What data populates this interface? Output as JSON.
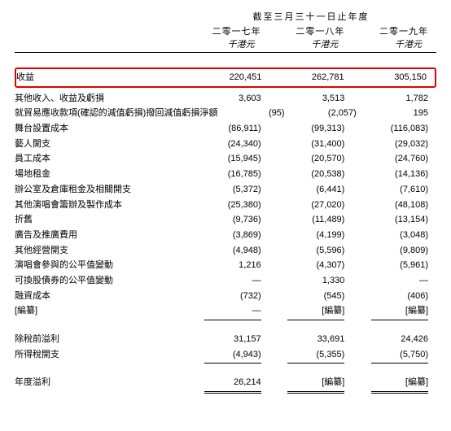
{
  "header": {
    "period_label": "截至三月三十一日止年度",
    "years": [
      "二零一七年",
      "二零一八年",
      "二零一九年"
    ],
    "unit": "千港元"
  },
  "highlight_row": {
    "label": "收益",
    "values": [
      "220,451",
      "262,781",
      "305,150"
    ]
  },
  "rows": [
    {
      "label": "其他收入、收益及虧損",
      "values": [
        "3,603",
        "3,513",
        "1,782"
      ]
    },
    {
      "label": "就貿易應收款項(確認的減值虧損)撥回減值虧損淨額",
      "values": [
        "(95)",
        "(2,057)",
        "195"
      ]
    },
    {
      "label": "舞台設置成本",
      "values": [
        "(86,911)",
        "(99,313)",
        "(116,083)"
      ]
    },
    {
      "label": "藝人開支",
      "values": [
        "(24,340)",
        "(31,400)",
        "(29,032)"
      ]
    },
    {
      "label": "員工成本",
      "values": [
        "(15,945)",
        "(20,570)",
        "(24,760)"
      ]
    },
    {
      "label": "場地租金",
      "values": [
        "(16,785)",
        "(20,538)",
        "(14,136)"
      ]
    },
    {
      "label": "辦公室及倉庫租金及相關開支",
      "values": [
        "(5,372)",
        "(6,441)",
        "(7,610)"
      ]
    },
    {
      "label": "其他演唱會籌辦及製作成本",
      "values": [
        "(25,380)",
        "(27,020)",
        "(48,108)"
      ]
    },
    {
      "label": "折舊",
      "values": [
        "(9,736)",
        "(11,489)",
        "(13,154)"
      ]
    },
    {
      "label": "廣告及推廣費用",
      "values": [
        "(3,869)",
        "(4,199)",
        "(3,048)"
      ]
    },
    {
      "label": "其他經營開支",
      "values": [
        "(4,948)",
        "(5,596)",
        "(9,809)"
      ]
    },
    {
      "label": "演唱會參與的公平值變動",
      "values": [
        "1,216",
        "(4,307)",
        "(5,961)"
      ]
    },
    {
      "label": "可換股債券的公平值變動",
      "values": [
        "—",
        "1,330",
        "—"
      ]
    },
    {
      "label": "融資成本",
      "values": [
        "(732)",
        "(545)",
        "(406)"
      ]
    }
  ],
  "redacted_row": {
    "label": "[編纂]",
    "values": [
      "—",
      "[編纂]",
      "[編纂]"
    ]
  },
  "subtotal_section": [
    {
      "label": "除稅前溢利",
      "values": [
        "31,157",
        "33,691",
        "24,426"
      ]
    },
    {
      "label": "所得稅開支",
      "values": [
        "(4,943)",
        "(5,355)",
        "(5,750)"
      ]
    }
  ],
  "final_row": {
    "label": "年度溢利",
    "values": [
      "26,214",
      "[編纂]",
      "[編纂]"
    ]
  },
  "colors": {
    "highlight_border": "#e20000",
    "text": "#000000",
    "background": "#ffffff"
  }
}
